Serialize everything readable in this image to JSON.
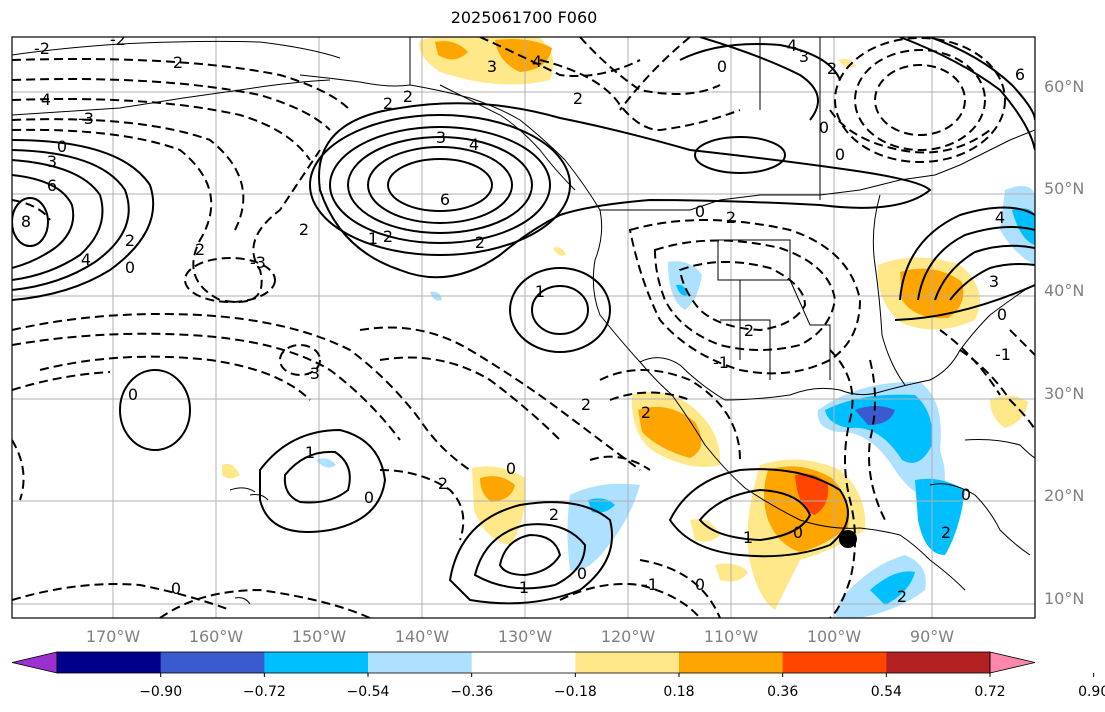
{
  "title": "2025061700 F060",
  "lon_labels": [
    "170°W",
    "160°W",
    "150°W",
    "140°W",
    "130°W",
    "120°W",
    "110°W",
    "100°W",
    "90°W"
  ],
  "lat_labels": [
    "10°N",
    "20°N",
    "30°N",
    "40°N",
    "50°N",
    "60°N"
  ],
  "colorbar": {
    "ticks": [
      "−0.90",
      "−0.72",
      "−0.54",
      "−0.36",
      "−0.18",
      "0.18",
      "0.36",
      "0.54",
      "0.72",
      "0.90"
    ],
    "colors": [
      "#9b30d0",
      "#00008b",
      "#3a5bd0",
      "#00bfff",
      "#aee0ff",
      "#ffffff",
      "#ffe88a",
      "#ffa500",
      "#ff4500",
      "#b22222",
      "#ff88aa"
    ]
  },
  "contour_labels": [
    "-2",
    "2",
    "4",
    "3",
    "-3",
    "0",
    "6",
    "-1",
    "1",
    "8"
  ],
  "palette": {
    "pos1": "#ffe88a",
    "pos2": "#ffa500",
    "pos3": "#ff4500",
    "neg1": "#aee0ff",
    "neg2": "#00bfff",
    "neg3": "#3a5bd0",
    "marker": "#000000",
    "grid": "#b0b0b0",
    "axis_label": "#808080"
  }
}
